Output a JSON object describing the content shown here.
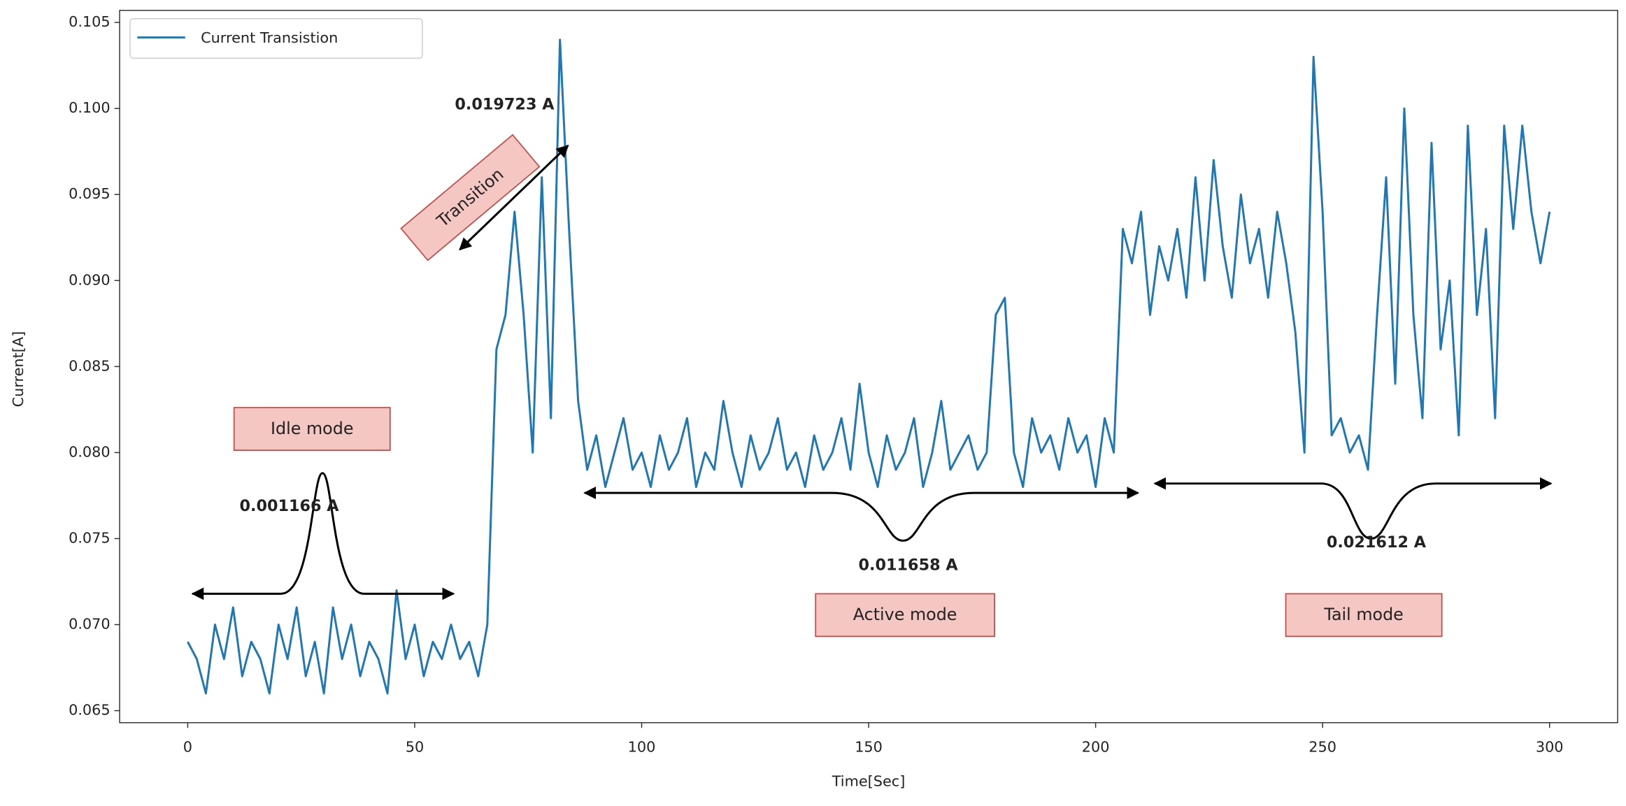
{
  "chart_data": {
    "type": "line",
    "xlabel": "Time[Sec]",
    "ylabel": "Current[A]",
    "x": [
      0,
      2,
      4,
      6,
      8,
      10,
      12,
      14,
      16,
      18,
      20,
      22,
      24,
      26,
      28,
      30,
      32,
      34,
      36,
      38,
      40,
      42,
      44,
      46,
      48,
      50,
      52,
      54,
      56,
      58,
      60,
      62,
      64,
      66,
      68,
      70,
      72,
      74,
      76,
      78,
      80,
      82,
      84,
      86,
      88,
      90,
      92,
      94,
      96,
      98,
      100,
      102,
      104,
      106,
      108,
      110,
      112,
      114,
      116,
      118,
      120,
      122,
      124,
      126,
      128,
      130,
      132,
      134,
      136,
      138,
      140,
      142,
      144,
      146,
      148,
      150,
      152,
      154,
      156,
      158,
      160,
      162,
      164,
      166,
      168,
      170,
      172,
      174,
      176,
      178,
      180,
      182,
      184,
      186,
      188,
      190,
      192,
      194,
      196,
      198,
      200,
      202,
      204,
      206,
      208,
      210,
      212,
      214,
      216,
      218,
      220,
      222,
      224,
      226,
      228,
      230,
      232,
      234,
      236,
      238,
      240,
      242,
      244,
      246,
      248,
      250,
      252,
      254,
      256,
      258,
      260,
      262,
      264,
      266,
      268,
      270,
      272,
      274,
      276,
      278,
      280,
      282,
      284,
      286,
      288,
      290,
      292,
      294,
      296,
      298,
      300
    ],
    "series": [
      {
        "name": "Current Transistion",
        "color": "#1f77b4",
        "values": [
          0.069,
          0.068,
          0.066,
          0.07,
          0.068,
          0.071,
          0.067,
          0.069,
          0.068,
          0.066,
          0.07,
          0.068,
          0.071,
          0.067,
          0.069,
          0.066,
          0.071,
          0.068,
          0.07,
          0.067,
          0.069,
          0.068,
          0.066,
          0.072,
          0.068,
          0.07,
          0.067,
          0.069,
          0.068,
          0.07,
          0.068,
          0.069,
          0.067,
          0.07,
          0.086,
          0.088,
          0.094,
          0.088,
          0.08,
          0.096,
          0.082,
          0.104,
          0.093,
          0.083,
          0.079,
          0.081,
          0.078,
          0.08,
          0.082,
          0.079,
          0.08,
          0.078,
          0.081,
          0.079,
          0.08,
          0.082,
          0.078,
          0.08,
          0.079,
          0.083,
          0.08,
          0.078,
          0.081,
          0.079,
          0.08,
          0.082,
          0.079,
          0.08,
          0.078,
          0.081,
          0.079,
          0.08,
          0.082,
          0.079,
          0.084,
          0.08,
          0.078,
          0.081,
          0.079,
          0.08,
          0.082,
          0.078,
          0.08,
          0.083,
          0.079,
          0.08,
          0.081,
          0.079,
          0.08,
          0.088,
          0.089,
          0.08,
          0.078,
          0.082,
          0.08,
          0.081,
          0.079,
          0.082,
          0.08,
          0.081,
          0.078,
          0.082,
          0.08,
          0.093,
          0.091,
          0.094,
          0.088,
          0.092,
          0.09,
          0.093,
          0.089,
          0.096,
          0.09,
          0.097,
          0.092,
          0.089,
          0.095,
          0.091,
          0.093,
          0.089,
          0.094,
          0.091,
          0.087,
          0.08,
          0.103,
          0.094,
          0.081,
          0.082,
          0.08,
          0.081,
          0.079,
          0.088,
          0.096,
          0.084,
          0.1,
          0.088,
          0.082,
          0.098,
          0.086,
          0.09,
          0.081,
          0.099,
          0.088,
          0.093,
          0.082,
          0.099,
          0.093,
          0.099,
          0.094,
          0.091,
          0.094
        ]
      }
    ],
    "xlim": [
      -15,
      315
    ],
    "ylim": [
      0.0643,
      0.1057
    ],
    "xticks": [
      0,
      50,
      100,
      150,
      200,
      250,
      300
    ],
    "yticks": [
      0.065,
      {
        "value": 0.07,
        "label": "0.070"
      },
      0.075,
      {
        "value": 0.08,
        "label": "0.080"
      },
      0.085,
      {
        "value": 0.09,
        "label": "0.090"
      },
      0.095,
      {
        "value": 0.1,
        "label": "0.100"
      },
      0.105
    ],
    "legend": "upper left",
    "annotations": [
      "0.019723 A",
      "0.001166 A",
      "0.011658 A",
      "0.021612 A",
      "Idle mode",
      "Transition",
      "Active mode",
      "Tail mode"
    ]
  }
}
